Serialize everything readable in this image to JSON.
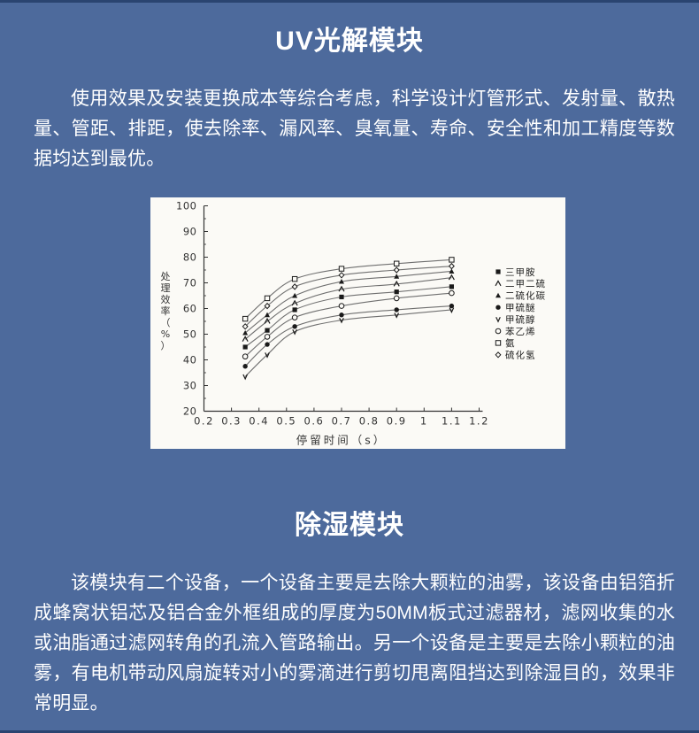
{
  "page": {
    "background_color": "#4d6a9c",
    "border_line_color": "#2a4470",
    "text_color": "#ffffff"
  },
  "uv_section": {
    "title": "UV光解模块",
    "paragraph": "使用效果及安装更换成本等综合考虑，科学设计灯管形式、发射量、散热量、管距、排距，使去除率、漏风率、臭氧量、寿命、安全性和加工精度等数据均达到最优。"
  },
  "chart_data": {
    "type": "line",
    "title": "",
    "xlabel": "停留时间（s）",
    "ylabel": "处理效率（%）",
    "xlim": [
      0.2,
      1.2
    ],
    "ylim": [
      20,
      100
    ],
    "x_tick_labels": [
      "0.2",
      "0.3",
      "0.4",
      "0.5",
      "0.6",
      "0.7",
      "0.8",
      "0.9",
      "1",
      "1.1",
      "1.2"
    ],
    "y_tick_labels": [
      "100",
      "90",
      "80",
      "70",
      "60",
      "50",
      "40",
      "30",
      "20"
    ],
    "grid": false,
    "legend_position": "right",
    "background_color": "#fbfaf6",
    "line_color": "#6f6f6f",
    "marker_color": "#1a1a1a",
    "axis_color": "#333333",
    "x": [
      0.35,
      0.43,
      0.53,
      0.7,
      0.9,
      1.1
    ],
    "series": [
      {
        "name": "三甲胺",
        "marker": "filled-square",
        "values": [
          45,
          51.5,
          59.5,
          64.5,
          66.5,
          68.5
        ]
      },
      {
        "name": "二甲二硫",
        "marker": "caret",
        "values": [
          48,
          55,
          62,
          67.5,
          69.5,
          72
        ]
      },
      {
        "name": "二硫化碳",
        "marker": "filled-triangle",
        "values": [
          50.5,
          57.5,
          65,
          70.5,
          72.5,
          74.5
        ]
      },
      {
        "name": "甲硫醚",
        "marker": "filled-circle",
        "values": [
          37.5,
          46,
          53,
          57.5,
          59.5,
          61
        ]
      },
      {
        "name": "甲硫醇",
        "marker": "down-tick",
        "values": [
          33.5,
          42,
          51,
          55.5,
          57.5,
          59.5
        ]
      },
      {
        "name": "苯乙烯",
        "marker": "open-circle",
        "values": [
          41.3,
          49,
          56.5,
          61,
          64,
          66
        ]
      },
      {
        "name": "氨",
        "marker": "open-square",
        "values": [
          56,
          64,
          71.5,
          75.5,
          77.5,
          79
        ]
      },
      {
        "name": "硫化氢",
        "marker": "open-diamond",
        "values": [
          53,
          61,
          68.5,
          73,
          75,
          76.5
        ]
      }
    ]
  },
  "dehumid_section": {
    "title": "除湿模块",
    "paragraph": "该模块有二个设备，一个设备主要是去除大颗粒的油雾，该设备由铝箔折成蜂窝状铝芯及铝合金外框组成的厚度为50MM板式过滤器材，滤网收集的水或油脂通过滤网转角的孔流入管路输出。另一个设备是主要是去除小颗粒的油雾，有电机带动风扇旋转对小的雾滴进行剪切甩离阻挡达到除湿目的，效果非常明显。"
  }
}
